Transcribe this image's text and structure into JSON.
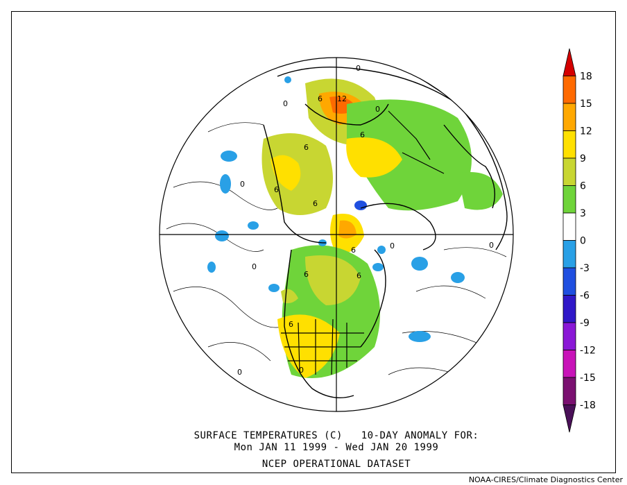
{
  "map": {
    "title_line1": "SURFACE TEMPERATURES (C)   10-DAY ANOMALY FOR:",
    "title_line2": "Mon JAN 11 1999 - Wed JAN 20 1999",
    "dataset": "NCEP OPERATIONAL DATASET",
    "credit": "NOAA-CIRES/Climate Diagnostics Center",
    "projection": "north-polar-stereographic",
    "contour_labels": [
      "12",
      "6",
      "6",
      "6",
      "6",
      "6",
      "6",
      "6",
      "6",
      "6",
      "0",
      "0",
      "0",
      "0",
      "0",
      "0",
      "0",
      "0",
      "0"
    ]
  },
  "colorbar": {
    "labels": [
      "18",
      "15",
      "12",
      "9",
      "6",
      "3",
      "0",
      "-3",
      "-6",
      "-9",
      "-12",
      "-15",
      "-18"
    ],
    "colors": [
      "#d40000",
      "#ff6a00",
      "#ffa800",
      "#ffe000",
      "#c8d632",
      "#6fd43a",
      "#ffffff",
      "#29a0e6",
      "#1f4fe0",
      "#3018c8",
      "#8a18d6",
      "#c813b8",
      "#7a1070",
      "#4a1058"
    ]
  }
}
